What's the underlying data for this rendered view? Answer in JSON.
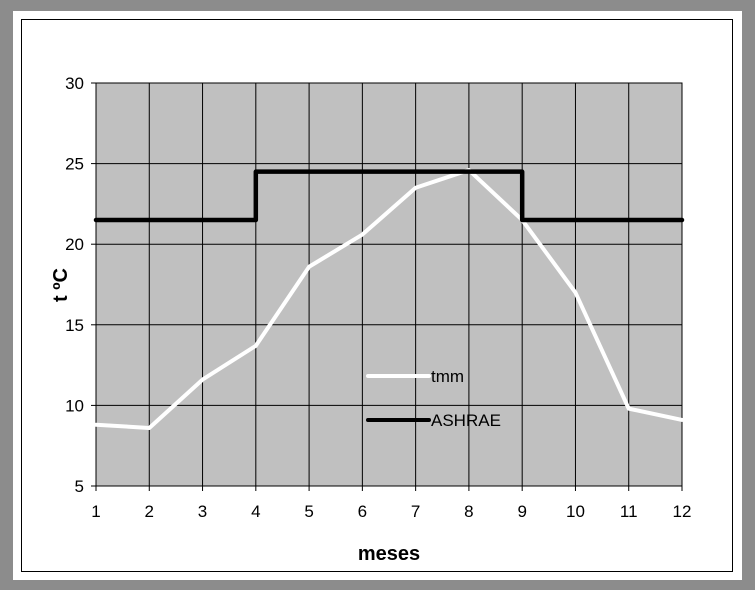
{
  "chart_data": {
    "type": "line",
    "xlabel": "meses",
    "ylabel": "t ºC",
    "x": [
      1,
      2,
      3,
      4,
      5,
      6,
      7,
      8,
      9,
      10,
      11,
      12
    ],
    "xlim": [
      1,
      12
    ],
    "ylim": [
      5,
      30
    ],
    "yticks": [
      5,
      10,
      15,
      20,
      25,
      30
    ],
    "xticks": [
      1,
      2,
      3,
      4,
      5,
      6,
      7,
      8,
      9,
      10,
      11,
      12
    ],
    "grid": true,
    "legend_position": "center",
    "plot_background": "#c0c0c0",
    "series": [
      {
        "name": "tmm",
        "color": "#ffffff",
        "style": "line",
        "values": [
          8.8,
          8.6,
          11.6,
          13.7,
          18.6,
          20.6,
          23.5,
          24.6,
          21.5,
          17.0,
          9.8,
          9.1
        ]
      },
      {
        "name": "ASHRAE",
        "color": "#000000",
        "style": "step",
        "values": [
          21.5,
          21.5,
          21.5,
          24.5,
          24.5,
          24.5,
          24.5,
          24.5,
          21.5,
          21.5,
          21.5,
          21.5
        ]
      }
    ]
  }
}
